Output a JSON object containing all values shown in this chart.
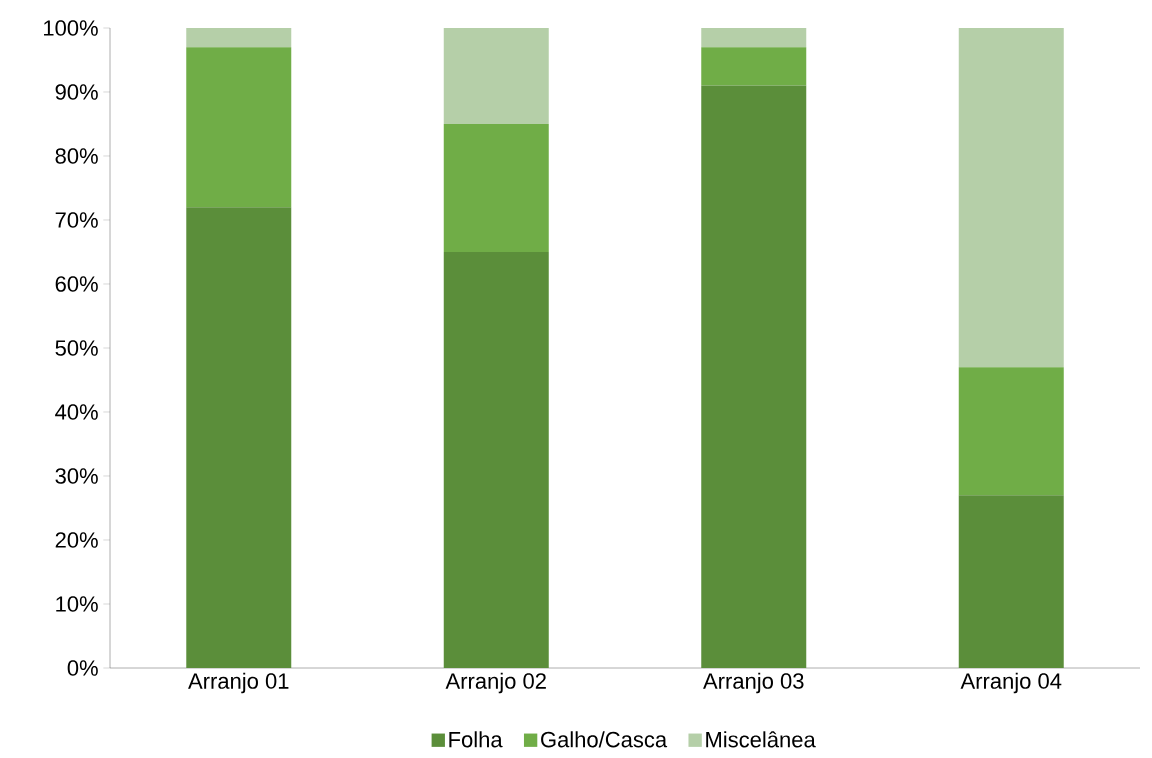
{
  "chart_data": {
    "type": "bar",
    "stacked": true,
    "categories": [
      "Arranjo 01",
      "Arranjo 02",
      "Arranjo 03",
      "Arranjo 04"
    ],
    "series": [
      {
        "name": "Folha",
        "color": "#5b8e3a",
        "values": [
          72,
          65,
          91,
          27
        ]
      },
      {
        "name": "Galho/Casca",
        "color": "#70ad47",
        "values": [
          25,
          20,
          6,
          20
        ]
      },
      {
        "name": "Miscelânea",
        "color": "#b5cfa8",
        "values": [
          3,
          15,
          3,
          53
        ]
      }
    ],
    "ylim": [
      0,
      100
    ],
    "yticks": [
      {
        "value": 0,
        "label": "0%"
      },
      {
        "value": 10,
        "label": "10%"
      },
      {
        "value": 20,
        "label": "20%"
      },
      {
        "value": 30,
        "label": "30%"
      },
      {
        "value": 40,
        "label": "40%"
      },
      {
        "value": 50,
        "label": "50%"
      },
      {
        "value": 60,
        "label": "60%"
      },
      {
        "value": 70,
        "label": "70%"
      },
      {
        "value": 80,
        "label": "80%"
      },
      {
        "value": 90,
        "label": "90%"
      },
      {
        "value": 100,
        "label": "100%"
      }
    ],
    "legend": "bottom",
    "grid": false
  }
}
